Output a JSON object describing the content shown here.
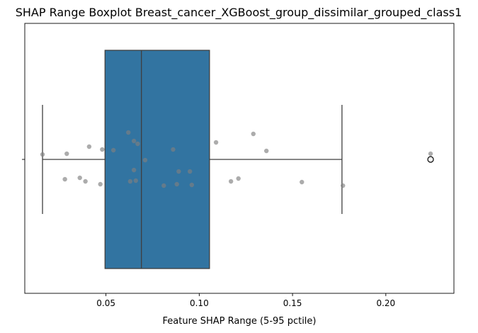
{
  "chart_data": {
    "type": "boxplot",
    "title": "SHAP Range Boxplot Breast_cancer_XGBoost_group_dissimilar_grouped_class1",
    "xlabel": "Feature SHAP Range (5-95 pctile)",
    "ylabel": "",
    "xlim": [
      0.0065,
      0.2365
    ],
    "x_ticks": [
      0.05,
      0.1,
      0.15,
      0.2
    ],
    "x_tick_labels": [
      "0.05",
      "0.10",
      "0.15",
      "0.20"
    ],
    "grid": false,
    "box": {
      "whisker_low": 0.016,
      "q1": 0.0495,
      "median": 0.069,
      "q3": 0.1055,
      "whisker_high": 0.1765,
      "outliers": [
        0.224
      ],
      "color": "#3274a1",
      "edge_color": "#3f3f3f"
    },
    "points": {
      "color": "#808080",
      "values": [
        {
          "x": 0.016,
          "jitter": 0.07
        },
        {
          "x": 0.028,
          "jitter": -0.28
        },
        {
          "x": 0.029,
          "jitter": 0.08
        },
        {
          "x": 0.036,
          "jitter": -0.26
        },
        {
          "x": 0.039,
          "jitter": -0.31
        },
        {
          "x": 0.041,
          "jitter": 0.18
        },
        {
          "x": 0.047,
          "jitter": -0.35
        },
        {
          "x": 0.048,
          "jitter": 0.14
        },
        {
          "x": 0.054,
          "jitter": 0.13
        },
        {
          "x": 0.062,
          "jitter": 0.38
        },
        {
          "x": 0.063,
          "jitter": -0.31
        },
        {
          "x": 0.065,
          "jitter": 0.26
        },
        {
          "x": 0.065,
          "jitter": -0.15
        },
        {
          "x": 0.066,
          "jitter": -0.3
        },
        {
          "x": 0.067,
          "jitter": 0.22
        },
        {
          "x": 0.071,
          "jitter": -0.01
        },
        {
          "x": 0.081,
          "jitter": -0.37
        },
        {
          "x": 0.086,
          "jitter": 0.14
        },
        {
          "x": 0.088,
          "jitter": -0.35
        },
        {
          "x": 0.089,
          "jitter": -0.17
        },
        {
          "x": 0.095,
          "jitter": -0.17
        },
        {
          "x": 0.096,
          "jitter": -0.36
        },
        {
          "x": 0.109,
          "jitter": 0.24
        },
        {
          "x": 0.117,
          "jitter": -0.31
        },
        {
          "x": 0.121,
          "jitter": -0.27
        },
        {
          "x": 0.129,
          "jitter": 0.36
        },
        {
          "x": 0.136,
          "jitter": 0.12
        },
        {
          "x": 0.155,
          "jitter": -0.32
        },
        {
          "x": 0.177,
          "jitter": -0.37
        },
        {
          "x": 0.224,
          "jitter": 0.08
        }
      ]
    }
  }
}
